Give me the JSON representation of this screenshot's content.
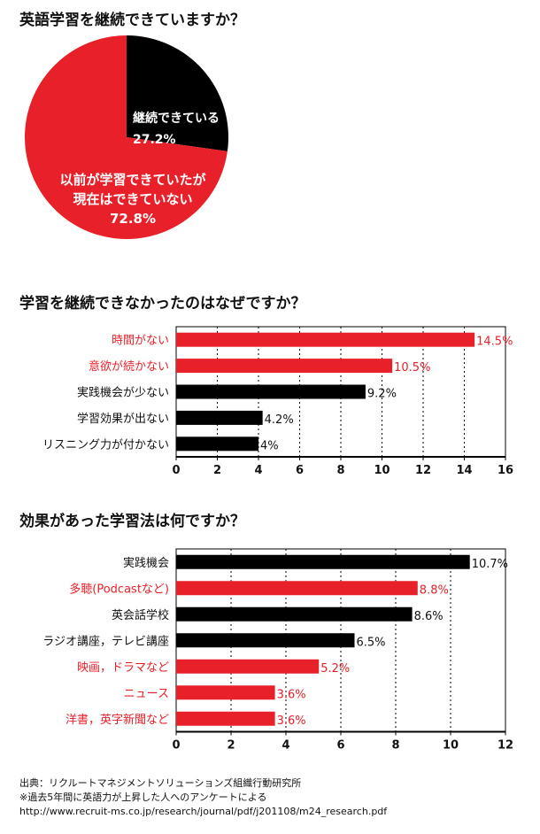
{
  "colors": {
    "red": "#e8202a",
    "black": "#000000",
    "axis": "#000000",
    "text_red": "#e8202a"
  },
  "chart_data": [
    {
      "type": "pie",
      "title": "英語学習を継続できていますか？",
      "slices": [
        {
          "label": "継続できている",
          "value": 27.2,
          "value_label": "27.2%",
          "color": "#000000"
        },
        {
          "label_lines": [
            "以前が学習できていたが",
            "現在はできていない"
          ],
          "label": "以前が学習できていたが現在はできていない",
          "value": 72.8,
          "value_label": "72.8%",
          "color": "#e8202a"
        }
      ]
    },
    {
      "type": "bar",
      "orientation": "horizontal",
      "title": "学習を継続できなかったのはなぜですか？",
      "categories": [
        "時間がない",
        "意欲が続かない",
        "実践機会が少ない",
        "学習効果が出ない",
        "リスニング力が付かない"
      ],
      "values": [
        14.5,
        10.5,
        9.2,
        4.2,
        4
      ],
      "value_labels": [
        "14.5%",
        "10.5%",
        "9.2%",
        "4.2%",
        "4%"
      ],
      "highlight": [
        true,
        true,
        false,
        false,
        false
      ],
      "xlim": [
        0,
        16
      ],
      "ticks": [
        0,
        2,
        4,
        6,
        8,
        10,
        12,
        14,
        16
      ],
      "grid": true
    },
    {
      "type": "bar",
      "orientation": "horizontal",
      "title": "効果があった学習法は何ですか？",
      "categories": [
        "実践機会",
        "多聴(Podcastなど)",
        "英会話学校",
        "ラジオ講座，テレビ講座",
        "映画，ドラマなど",
        "ニュース",
        "洋書，英字新聞など"
      ],
      "values": [
        10.7,
        8.8,
        8.6,
        6.5,
        5.2,
        3.6,
        3.6
      ],
      "value_labels": [
        "10.7%",
        "8.8%",
        "8.6%",
        "6.5%",
        "5.2%",
        "3.6%",
        "3.6%"
      ],
      "highlight": [
        false,
        true,
        false,
        false,
        true,
        true,
        true
      ],
      "xlim": [
        0,
        12
      ],
      "ticks": [
        0,
        2,
        4,
        6,
        8,
        10,
        12
      ],
      "grid": true
    }
  ],
  "footer": {
    "line1": "出典：リクルートマネジメントソリューションズ組織行動研究所",
    "line2": "※過去5年間に英語力が上昇した人へのアンケートによる",
    "line3": "http://www.recruit-ms.co.jp/research/journal/pdf/j201108/m24_research.pdf"
  }
}
